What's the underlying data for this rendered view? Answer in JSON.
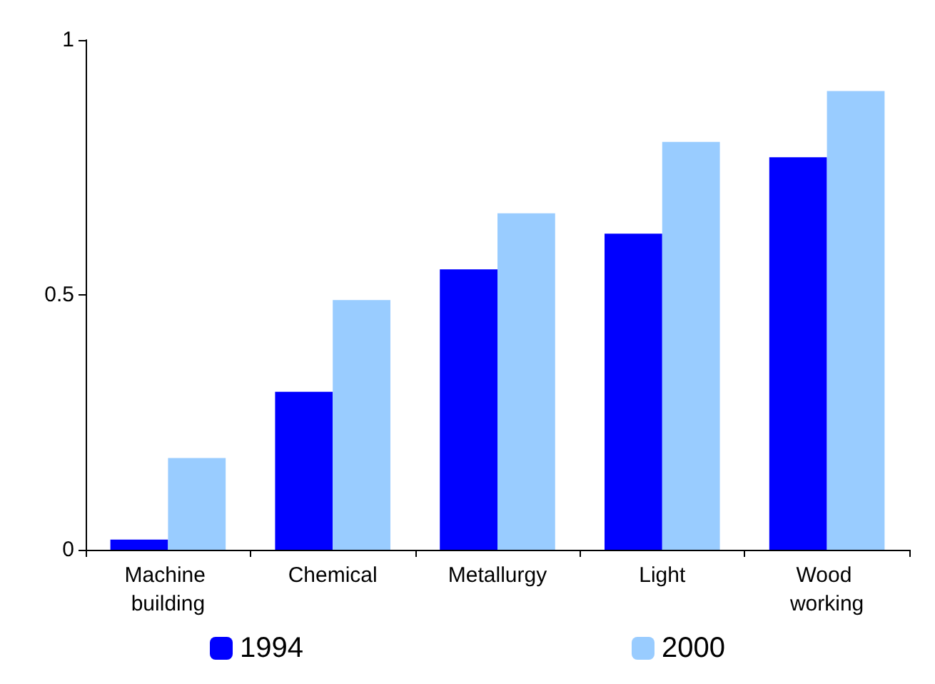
{
  "chart_data": {
    "type": "bar",
    "categories": [
      "Machine building",
      "Chemical",
      "Metallurgy",
      "Light",
      "Wood working"
    ],
    "series": [
      {
        "name": "1994",
        "color": "#0000ff",
        "values": [
          0.02,
          0.31,
          0.55,
          0.62,
          0.77
        ]
      },
      {
        "name": "2000",
        "color": "#99ccff",
        "values": [
          0.18,
          0.49,
          0.66,
          0.8,
          0.9
        ]
      }
    ],
    "ylim": [
      0,
      1
    ],
    "yticks": [
      0,
      0.5,
      1
    ],
    "grid": false,
    "legend": "bottom"
  }
}
